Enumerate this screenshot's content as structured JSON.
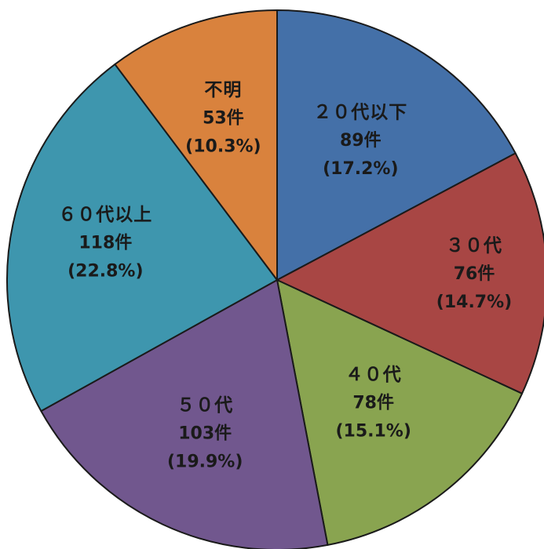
{
  "chart_data": {
    "type": "pie",
    "start_angle_deg": 0,
    "direction": "clockwise",
    "stroke_color": "#1a1a1a",
    "slices": [
      {
        "label": "２０代以下",
        "count_text": "89件",
        "percent_text": "(17.2%)",
        "value": 89,
        "percent": 17.2,
        "color": "#4470A8"
      },
      {
        "label": "３０代",
        "count_text": "76件",
        "percent_text": "(14.7%)",
        "value": 76,
        "percent": 14.7,
        "color": "#A84644"
      },
      {
        "label": "４０代",
        "count_text": "78件",
        "percent_text": "(15.1%)",
        "value": 78,
        "percent": 15.1,
        "color": "#89A450"
      },
      {
        "label": "５０代",
        "count_text": "103件",
        "percent_text": "(19.9%)",
        "value": 103,
        "percent": 19.9,
        "color": "#71578E"
      },
      {
        "label": "６０代以上",
        "count_text": "118件",
        "percent_text": "(22.8%)",
        "value": 118,
        "percent": 22.8,
        "color": "#3E96AE"
      },
      {
        "label": "不明",
        "count_text": "53件",
        "percent_text": "(10.3%)",
        "value": 53,
        "percent": 10.3,
        "color": "#D9823D"
      }
    ]
  }
}
